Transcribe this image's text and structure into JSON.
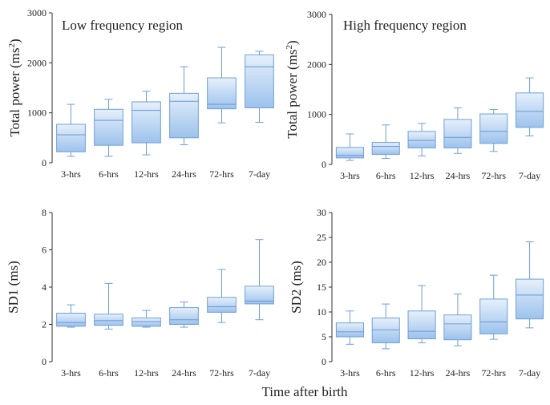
{
  "figure": {
    "x_title": "Time after birth"
  },
  "colors": {
    "box_top": "#e6f0fb",
    "box_bottom": "#9cc2ec",
    "box_stroke": "#6f9fd8",
    "axis": "#333333"
  },
  "chart_data": [
    {
      "type": "box",
      "title": "Low frequency region",
      "ylabel": "Total power (ms²)",
      "ylabel_main": "Total power (ms",
      "ylabel_sup": "2",
      "ylabel_end": ")",
      "ylim": [
        0,
        3000
      ],
      "yticks": [
        "0",
        "1000",
        "2000",
        "3000"
      ],
      "categories": [
        "3-hrs",
        "6-hrs",
        "12-hrs",
        "24-hrs",
        "72-hrs",
        "7-day"
      ],
      "boxes": [
        {
          "min": 130,
          "q1": 220,
          "median": 560,
          "q3": 770,
          "max": 1170
        },
        {
          "min": 130,
          "q1": 350,
          "median": 850,
          "q3": 1070,
          "max": 1270
        },
        {
          "min": 160,
          "q1": 400,
          "median": 1050,
          "q3": 1220,
          "max": 1430
        },
        {
          "min": 360,
          "q1": 500,
          "median": 1230,
          "q3": 1390,
          "max": 1920
        },
        {
          "min": 800,
          "q1": 1080,
          "median": 1170,
          "q3": 1700,
          "max": 2310
        },
        {
          "min": 810,
          "q1": 1100,
          "median": 1920,
          "q3": 2160,
          "max": 2230
        }
      ]
    },
    {
      "type": "box",
      "title": "High frequency region",
      "ylabel": "Total power (ms²)",
      "ylabel_main": "Total power (ms",
      "ylabel_sup": "2",
      "ylabel_end": ")",
      "ylim": [
        0,
        3000
      ],
      "yticks": [
        "0",
        "1000",
        "2000",
        "3000"
      ],
      "categories": [
        "3-hrs",
        "6-hrs",
        "12-hrs",
        "24-hrs",
        "72-hrs",
        "7-day"
      ],
      "boxes": [
        {
          "min": 80,
          "q1": 130,
          "median": 180,
          "q3": 340,
          "max": 610
        },
        {
          "min": 120,
          "q1": 200,
          "median": 360,
          "q3": 440,
          "max": 790
        },
        {
          "min": 170,
          "q1": 330,
          "median": 480,
          "q3": 660,
          "max": 820
        },
        {
          "min": 220,
          "q1": 330,
          "median": 540,
          "q3": 900,
          "max": 1130
        },
        {
          "min": 260,
          "q1": 420,
          "median": 660,
          "q3": 1010,
          "max": 1100
        },
        {
          "min": 570,
          "q1": 740,
          "median": 1060,
          "q3": 1430,
          "max": 1730
        }
      ]
    },
    {
      "type": "box",
      "title": "",
      "ylabel": "SD1 (ms)",
      "ylabel_main": "SD1 (ms)",
      "ylabel_sup": "",
      "ylabel_end": "",
      "ylim": [
        0,
        8
      ],
      "yticks": [
        "0",
        "2",
        "4",
        "6",
        "8"
      ],
      "categories": [
        "3-hrs",
        "6-hrs",
        "12-hrs",
        "24-hrs",
        "72-hrs",
        "7-day"
      ],
      "boxes": [
        {
          "min": 1.85,
          "q1": 1.9,
          "median": 2.1,
          "q3": 2.6,
          "max": 3.05
        },
        {
          "min": 1.75,
          "q1": 1.95,
          "median": 2.2,
          "q3": 2.55,
          "max": 4.2
        },
        {
          "min": 1.85,
          "q1": 1.9,
          "median": 2.15,
          "q3": 2.35,
          "max": 2.75
        },
        {
          "min": 1.85,
          "q1": 2.0,
          "median": 2.25,
          "q3": 2.9,
          "max": 3.2
        },
        {
          "min": 2.1,
          "q1": 2.65,
          "median": 2.95,
          "q3": 3.45,
          "max": 4.95
        },
        {
          "min": 2.25,
          "q1": 3.1,
          "median": 3.25,
          "q3": 4.05,
          "max": 6.55
        }
      ]
    },
    {
      "type": "box",
      "title": "",
      "ylabel": "SD2 (ms)",
      "ylabel_main": "SD2 (ms)",
      "ylabel_sup": "",
      "ylabel_end": "",
      "ylim": [
        0,
        30
      ],
      "yticks": [
        "0",
        "5",
        "10",
        "15",
        "20",
        "25",
        "30"
      ],
      "categories": [
        "3-hrs",
        "6-hrs",
        "12-hrs",
        "24-hrs",
        "72-hrs",
        "7-day"
      ],
      "boxes": [
        {
          "min": 3.5,
          "q1": 5.0,
          "median": 6.0,
          "q3": 7.8,
          "max": 10.2
        },
        {
          "min": 2.6,
          "q1": 3.8,
          "median": 6.4,
          "q3": 8.8,
          "max": 11.6
        },
        {
          "min": 3.8,
          "q1": 4.6,
          "median": 6.1,
          "q3": 10.2,
          "max": 15.3
        },
        {
          "min": 3.2,
          "q1": 4.4,
          "median": 7.6,
          "q3": 9.4,
          "max": 13.6
        },
        {
          "min": 4.5,
          "q1": 5.6,
          "median": 8.0,
          "q3": 12.6,
          "max": 17.4
        },
        {
          "min": 6.8,
          "q1": 8.6,
          "median": 13.4,
          "q3": 16.6,
          "max": 24.1
        }
      ]
    }
  ]
}
